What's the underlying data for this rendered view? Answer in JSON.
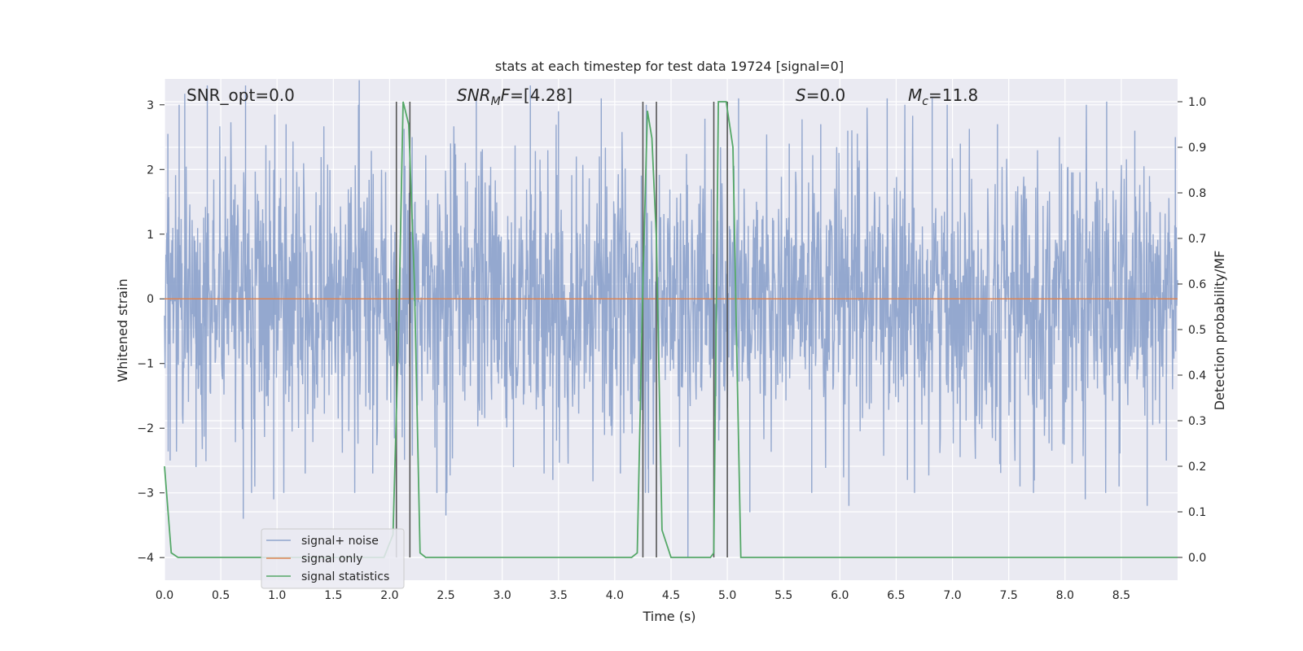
{
  "chart_data": {
    "type": "line",
    "title": "stats at each timestep for test data 19724 [signal=0]",
    "xlabel": "Time (s)",
    "ylabel": "Whitened strain",
    "y2label": "Detection probability/MF",
    "xlim": [
      0.0,
      9.0
    ],
    "ylim": [
      -4.35,
      3.4
    ],
    "y2lim": [
      -0.05,
      1.05
    ],
    "x_ticks": [
      "0.0",
      "0.5",
      "1.0",
      "1.5",
      "2.0",
      "2.5",
      "3.0",
      "3.5",
      "4.0",
      "4.5",
      "5.0",
      "5.5",
      "6.0",
      "6.5",
      "7.0",
      "7.5",
      "8.0",
      "8.5"
    ],
    "y_ticks": [
      "3",
      "2",
      "1",
      "0",
      "−1",
      "−2",
      "−3",
      "−4"
    ],
    "y2_ticks": [
      "1.0",
      "0.9",
      "0.8",
      "0.7",
      "0.6",
      "0.5",
      "0.4",
      "0.3",
      "0.2",
      "0.1",
      "0.0"
    ],
    "grid": true,
    "legend_position": "lower-left",
    "annotations": {
      "snr_opt": "SNR_opt=0.0",
      "snr_mf": "=[4.28]",
      "snr_mf_symbol": "SNR",
      "snr_mf_sub": "M",
      "snr_mf_tail": "F",
      "s_symbol": "S",
      "s_value": "=0.0",
      "mc_symbol": "M",
      "mc_sub": "c",
      "mc_value": "=11.8"
    },
    "series": [
      {
        "name": "signal+ noise",
        "color": "#8fa4cc",
        "description_of_values": "whitened strain noise, approx uniform amplitude, min ≈ -3.4, max ≈ 3.4",
        "peaks_high": [
          [
            0.03,
            2.55
          ],
          [
            0.13,
            3.0
          ],
          [
            0.18,
            3.17
          ],
          [
            0.38,
            3.3
          ],
          [
            0.72,
            3.3
          ],
          [
            0.98,
            2.85
          ],
          [
            1.08,
            2.7
          ],
          [
            1.73,
            3.38
          ],
          [
            2.2,
            2.5
          ],
          [
            2.58,
            2.4
          ],
          [
            2.77,
            3.1
          ],
          [
            3.25,
            3.3
          ],
          [
            3.5,
            2.9
          ],
          [
            3.88,
            3.1
          ],
          [
            4.28,
            3.0
          ],
          [
            5.1,
            3.1
          ],
          [
            5.55,
            2.4
          ],
          [
            5.83,
            2.7
          ],
          [
            6.07,
            2.6
          ],
          [
            6.42,
            3.1
          ],
          [
            6.82,
            3.1
          ],
          [
            7.07,
            2.4
          ],
          [
            7.4,
            2.7
          ],
          [
            7.95,
            2.5
          ],
          [
            8.37,
            3.05
          ],
          [
            8.62,
            2.6
          ],
          [
            8.98,
            2.5
          ]
        ],
        "peaks_low": [
          [
            0.05,
            -2.5
          ],
          [
            0.28,
            -2.6
          ],
          [
            0.7,
            -3.4
          ],
          [
            0.97,
            -3.1
          ],
          [
            1.25,
            -2.7
          ],
          [
            1.85,
            -2.7
          ],
          [
            2.42,
            -3.0
          ],
          [
            2.5,
            -3.35
          ],
          [
            3.1,
            -2.6
          ],
          [
            3.45,
            -2.8
          ],
          [
            4.05,
            -2.7
          ],
          [
            4.3,
            -3.0
          ],
          [
            4.65,
            -4.0
          ],
          [
            5.2,
            -3.3
          ],
          [
            5.75,
            -3.0
          ],
          [
            6.08,
            -3.2
          ],
          [
            6.6,
            -2.8
          ],
          [
            7.6,
            -2.9
          ],
          [
            7.72,
            -3.0
          ],
          [
            8.18,
            -3.1
          ],
          [
            8.48,
            -2.9
          ],
          [
            8.73,
            -3.2
          ],
          [
            8.9,
            -2.5
          ]
        ]
      },
      {
        "name": "signal only",
        "color": "#dd8452",
        "x": [
          0.0,
          9.0
        ],
        "y": [
          0.0,
          0.0
        ]
      },
      {
        "name": "signal statistics",
        "color": "#55a868",
        "axis": "right",
        "x": [
          0.0,
          0.06,
          0.12,
          1.95,
          2.03,
          2.08,
          2.12,
          2.17,
          2.22,
          2.27,
          2.32,
          2.4,
          4.15,
          4.2,
          4.25,
          4.29,
          4.33,
          4.37,
          4.42,
          4.5,
          4.85,
          4.88,
          4.92,
          4.99,
          5.05,
          5.08,
          5.12,
          5.2,
          9.0
        ],
        "y": [
          0.2,
          0.01,
          0.0,
          0.0,
          0.05,
          0.5,
          1.0,
          0.95,
          0.6,
          0.01,
          0.0,
          0.0,
          0.0,
          0.01,
          0.6,
          0.98,
          0.92,
          0.7,
          0.06,
          0.0,
          0.0,
          0.01,
          1.0,
          1.0,
          0.9,
          0.5,
          0.0,
          0.0,
          0.0
        ]
      }
    ],
    "vertical_lines_x": [
      2.06,
      2.18,
      4.25,
      4.37,
      4.88,
      5.0
    ],
    "vertical_lines_color": "#555555"
  }
}
